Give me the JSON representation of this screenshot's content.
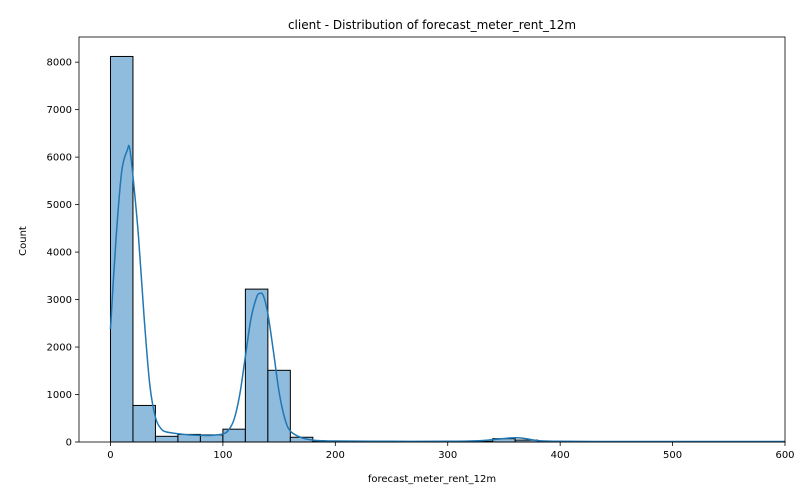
{
  "chart_data": {
    "type": "bar",
    "subtype": "histogram-with-kde",
    "title": "client - Distribution of forecast_meter_rent_12m",
    "xlabel": "forecast_meter_rent_12m",
    "ylabel": "Count",
    "xlim": [
      -28,
      600
    ],
    "ylim": [
      0,
      8530
    ],
    "x_ticks": [
      0,
      100,
      200,
      300,
      400,
      500,
      600
    ],
    "y_ticks": [
      0,
      1000,
      2000,
      3000,
      4000,
      5000,
      6000,
      7000,
      8000
    ],
    "grid": false,
    "bin_width": 20,
    "bins": [
      {
        "start": 0,
        "end": 20,
        "count": 8120
      },
      {
        "start": 20,
        "end": 40,
        "count": 770
      },
      {
        "start": 40,
        "end": 60,
        "count": 120
      },
      {
        "start": 60,
        "end": 80,
        "count": 160
      },
      {
        "start": 80,
        "end": 100,
        "count": 150
      },
      {
        "start": 100,
        "end": 120,
        "count": 270
      },
      {
        "start": 120,
        "end": 140,
        "count": 3220
      },
      {
        "start": 140,
        "end": 160,
        "count": 1510
      },
      {
        "start": 160,
        "end": 180,
        "count": 100
      },
      {
        "start": 180,
        "end": 200,
        "count": 10
      },
      {
        "start": 200,
        "end": 220,
        "count": 5
      },
      {
        "start": 220,
        "end": 240,
        "count": 5
      },
      {
        "start": 240,
        "end": 260,
        "count": 5
      },
      {
        "start": 260,
        "end": 280,
        "count": 5
      },
      {
        "start": 280,
        "end": 300,
        "count": 5
      },
      {
        "start": 300,
        "end": 320,
        "count": 10
      },
      {
        "start": 320,
        "end": 340,
        "count": 15
      },
      {
        "start": 340,
        "end": 360,
        "count": 70
      },
      {
        "start": 360,
        "end": 380,
        "count": 40
      },
      {
        "start": 380,
        "end": 400,
        "count": 10
      },
      {
        "start": 400,
        "end": 420,
        "count": 5
      },
      {
        "start": 420,
        "end": 440,
        "count": 5
      },
      {
        "start": 440,
        "end": 460,
        "count": 5
      },
      {
        "start": 460,
        "end": 480,
        "count": 5
      },
      {
        "start": 480,
        "end": 500,
        "count": 5
      },
      {
        "start": 500,
        "end": 520,
        "count": 5
      },
      {
        "start": 520,
        "end": 540,
        "count": 5
      },
      {
        "start": 540,
        "end": 560,
        "count": 5
      },
      {
        "start": 560,
        "end": 580,
        "count": 5
      },
      {
        "start": 580,
        "end": 600,
        "count": 5
      }
    ],
    "kde": {
      "x": [
        0,
        5,
        10,
        15,
        17,
        20,
        25,
        30,
        35,
        40,
        45,
        50,
        60,
        70,
        80,
        90,
        100,
        105,
        110,
        115,
        120,
        125,
        130,
        133,
        136,
        140,
        145,
        150,
        155,
        160,
        170,
        180,
        190,
        200,
        250,
        300,
        330,
        345,
        355,
        362,
        370,
        380,
        400,
        450,
        500,
        550,
        600
      ],
      "y": [
        2380,
        4300,
        5700,
        6150,
        6200,
        5600,
        4300,
        2600,
        1200,
        520,
        280,
        210,
        175,
        150,
        140,
        140,
        170,
        250,
        480,
        1000,
        1800,
        2600,
        3050,
        3130,
        3080,
        2700,
        1900,
        1050,
        500,
        230,
        90,
        40,
        25,
        20,
        15,
        15,
        30,
        60,
        85,
        90,
        70,
        30,
        15,
        10,
        10,
        10,
        10
      ]
    },
    "colors": {
      "bar_fill": "#8fbbdc",
      "bar_edge": "#000000",
      "kde_line": "#1f77b4"
    }
  }
}
